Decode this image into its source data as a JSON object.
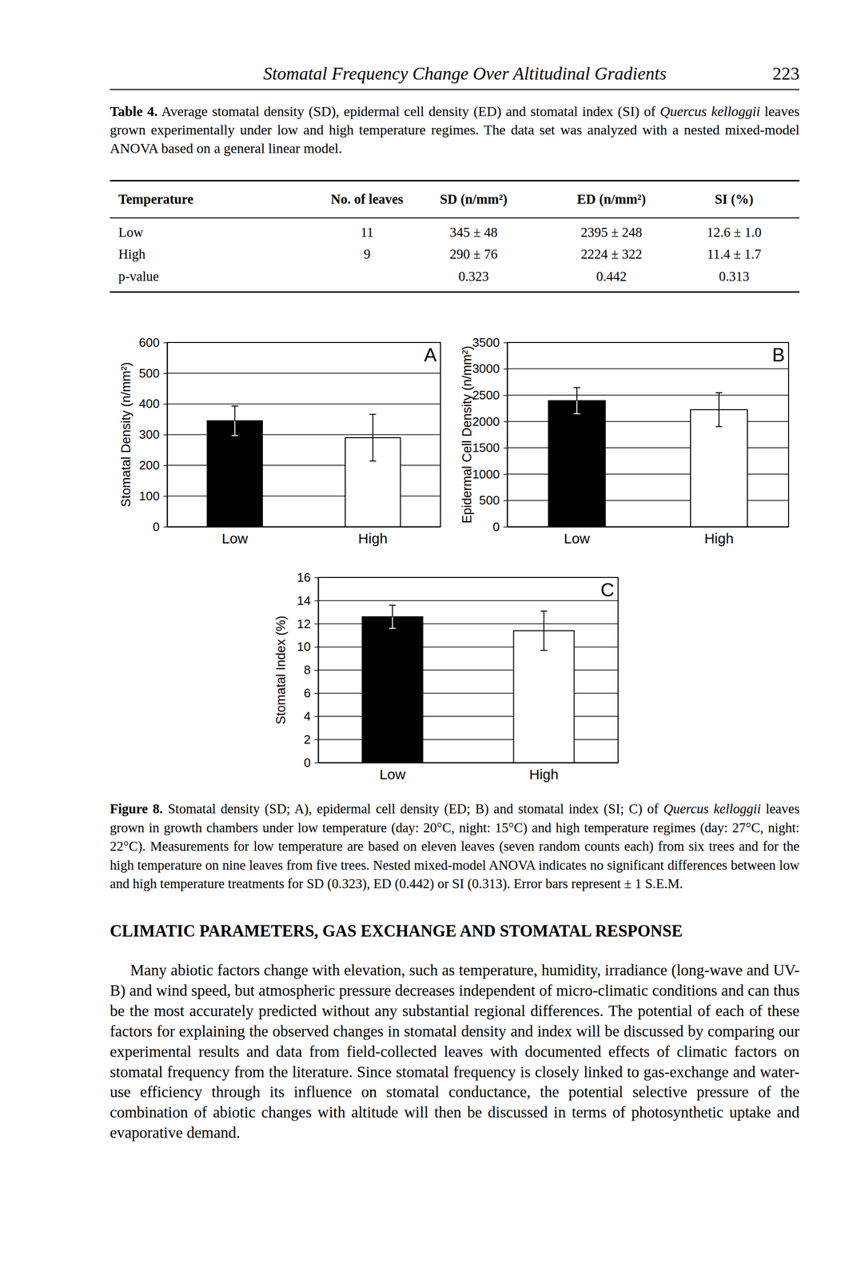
{
  "header": {
    "title": "Stomatal Frequency Change Over Altitudinal Gradients",
    "page": "223"
  },
  "table": {
    "caption": {
      "label": "Table 4.",
      "text_before": " Average stomatal density (SD), epidermal cell density (ED) and stomatal index (SI) of ",
      "species": "Quercus kelloggii",
      "text_after": " leaves grown experimentally under low and high temperature regimes. The data set was analyzed with a nested mixed-model ANOVA based on a general linear model."
    },
    "columns": [
      "Temperature",
      "No. of leaves",
      "SD (n/mm²)",
      "ED (n/mm²)",
      "SI (%)"
    ],
    "rows": [
      [
        "Low",
        "11",
        "345 ± 48",
        "2395 ± 248",
        "12.6 ± 1.0"
      ],
      [
        "High",
        "9",
        "290 ± 76",
        "2224 ± 322",
        "11.4 ± 1.7"
      ],
      [
        "p-value",
        null,
        "0.323",
        "0.442",
        "0.313"
      ]
    ]
  },
  "chart_data": [
    {
      "type": "bar",
      "annotation": "A",
      "ylabel": "Stomatal Density (n/mm²)",
      "categories": [
        "Low",
        "High"
      ],
      "values": [
        345,
        290
      ],
      "errors": [
        48,
        76
      ],
      "colors": [
        "#000000",
        "#ffffff"
      ],
      "ylim": [
        0,
        600
      ],
      "yticks": [
        0,
        100,
        200,
        300,
        400,
        500,
        600
      ],
      "grid": true
    },
    {
      "type": "bar",
      "annotation": "B",
      "ylabel": "Epidermal Cell Density (n/mm²)",
      "categories": [
        "Low",
        "High"
      ],
      "values": [
        2395,
        2224
      ],
      "errors": [
        248,
        322
      ],
      "colors": [
        "#000000",
        "#ffffff"
      ],
      "ylim": [
        0,
        3500
      ],
      "yticks": [
        0,
        500,
        1000,
        1500,
        2000,
        2500,
        3000,
        3500
      ],
      "grid": true
    },
    {
      "type": "bar",
      "annotation": "C",
      "ylabel": "Stomatal Index (%)",
      "categories": [
        "Low",
        "High"
      ],
      "values": [
        12.6,
        11.4
      ],
      "errors": [
        1.0,
        1.7
      ],
      "colors": [
        "#000000",
        "#ffffff"
      ],
      "ylim": [
        0,
        16
      ],
      "yticks": [
        0,
        2,
        4,
        6,
        8,
        10,
        12,
        14,
        16
      ],
      "grid": true
    }
  ],
  "figure_caption": {
    "label": "Figure 8.",
    "text_before": " Stomatal density (SD; A), epidermal cell density (ED; B) and stomatal index (SI; C) of ",
    "species": "Quercus kelloggii",
    "text_after": " leaves grown in growth chambers under low temperature (day: 20°C, night: 15°C) and high temperature regimes (day: 27°C, night: 22°C). Measurements for low temperature are based on eleven leaves (seven random counts each) from six trees and for the high temperature on nine leaves from five trees. Nested mixed-model ANOVA indicates no significant differences between low and high temperature treatments for SD (0.323), ED (0.442) or SI (0.313). Error bars represent ± 1 S.E.M."
  },
  "section": {
    "heading": "CLIMATIC PARAMETERS, GAS EXCHANGE AND STOMATAL RESPONSE",
    "paragraph": "Many abiotic factors change with elevation, such as temperature, humidity, irradiance (long-wave and UV-B) and wind speed, but atmospheric pressure decreases independent of micro-climatic conditions and can thus be the most accurately predicted without any substantial regional differences. The potential of each of these factors for explaining the observed changes in stomatal density and index will be discussed by comparing our experimental results and data from field-collected leaves with documented effects of climatic factors on stomatal frequency from the literature. Since stomatal frequency is closely linked to gas-exchange and water-use efficiency through its influence on stomatal conductance, the potential selective pressure of the combination of abiotic changes with altitude will then be discussed in terms of photosynthetic uptake and evaporative demand."
  }
}
